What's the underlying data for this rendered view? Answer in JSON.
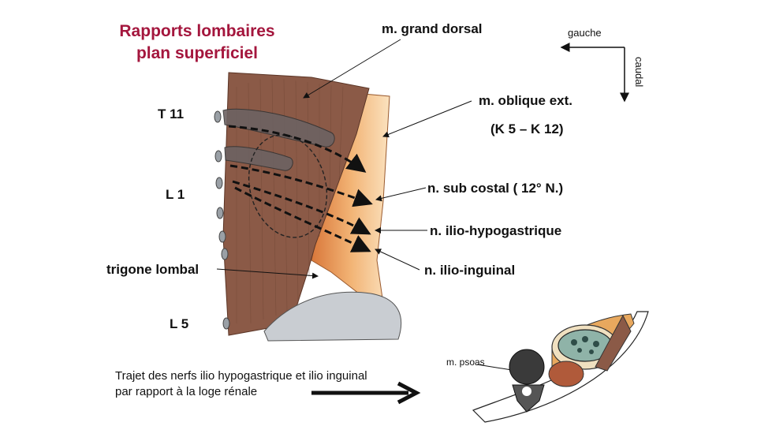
{
  "title": {
    "line1": "Rapports lombaires",
    "line2": "plan superficiel"
  },
  "orientation": {
    "left": "gauche",
    "down": "caudal"
  },
  "vertebrae": {
    "t11": "T 11",
    "l1": "L 1",
    "l5": "L 5"
  },
  "labels": {
    "grand_dorsal": "m. grand dorsal",
    "oblique_ext": "m. oblique ext.",
    "oblique_range": "(K 5 – K 12)",
    "sub_costal": "n. sub costal ( 12° N.)",
    "ilio_hypogastrique": "n. ilio-hypogastrique",
    "ilio_inguinal": "n. ilio-inguinal",
    "trigone": "trigone lombal",
    "psoas": "m. psoas"
  },
  "caption": {
    "line1": "Trajet des nerfs ilio hypogastrique et ilio inguinal",
    "line2": "par rapport à la loge rénale"
  },
  "colors": {
    "title": "#a4163d",
    "muscle": "#8b5a47",
    "oblique": "#f2b374",
    "bone": "#c9cdd2"
  }
}
